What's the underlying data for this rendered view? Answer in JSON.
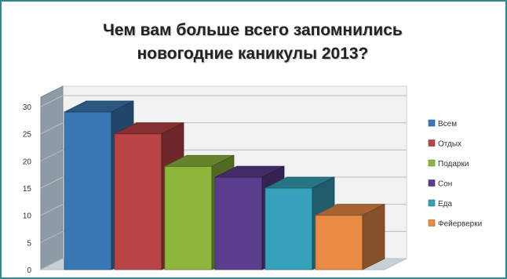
{
  "chart_data": {
    "type": "bar",
    "title_line1": "Чем вам больше всего запомнились",
    "title_line2": "новогодние каникулы 2013?",
    "xlabel": "",
    "ylabel": "",
    "ylim": [
      0,
      30
    ],
    "yticks": [
      0,
      5,
      10,
      15,
      20,
      25,
      30
    ],
    "grid": true,
    "legend_position": "right",
    "series": [
      {
        "name": "Всем",
        "value": 29,
        "color": "#3a78b5"
      },
      {
        "name": "Отдых",
        "value": 25,
        "color": "#b94446"
      },
      {
        "name": "Подарки",
        "value": 19,
        "color": "#8cb63c"
      },
      {
        "name": "Сон",
        "value": 17,
        "color": "#5b3d8e"
      },
      {
        "name": "Еда",
        "value": 15,
        "color": "#36a1bb"
      },
      {
        "name": "Фейерверки",
        "value": 10,
        "color": "#e78b45"
      }
    ]
  }
}
